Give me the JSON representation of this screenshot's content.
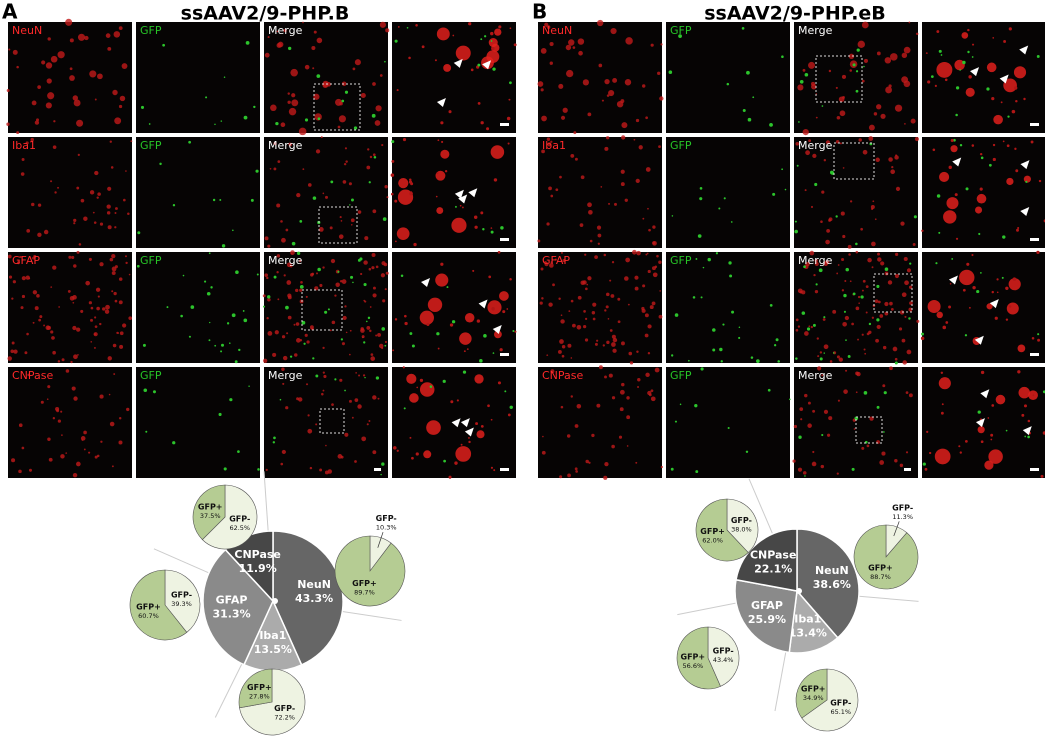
{
  "panels": [
    {
      "letter": "A",
      "title": "ssAAV2/9-PHP.B",
      "rows": [
        [
          "NeuN",
          "GFP",
          "Merge"
        ],
        [
          "Iba1",
          "GFP",
          "Merge"
        ],
        [
          "GFAP",
          "GFP",
          "Merge"
        ],
        [
          "CNPase",
          "GFP",
          "Merge"
        ]
      ],
      "main_pie": {
        "type": "pie",
        "categories": [
          "NeuN",
          "Iba1",
          "GFAP",
          "CNPase"
        ],
        "values": [
          43.3,
          13.5,
          31.3,
          11.9
        ],
        "value_labels": [
          "43.3%",
          "13.5%",
          "31.3%",
          "11.9%"
        ],
        "colors": [
          "#666666",
          "#ababab",
          "#8a8a8a",
          "#474747"
        ]
      },
      "sub_pies": [
        {
          "type": "pie",
          "categories": [
            "GFP-",
            "GFP+"
          ],
          "values": [
            10.3,
            89.7
          ],
          "value_labels": [
            "10.3%",
            "89.7%"
          ],
          "colors": [
            "#eef3e2",
            "#b5cc93"
          ]
        },
        {
          "type": "pie",
          "categories": [
            "GFP-",
            "GFP+"
          ],
          "values": [
            72.2,
            27.8
          ],
          "value_labels": [
            "72.2%",
            "27.8%"
          ],
          "colors": [
            "#eef3e2",
            "#b5cc93"
          ]
        },
        {
          "type": "pie",
          "categories": [
            "GFP-",
            "GFP+"
          ],
          "values": [
            39.3,
            60.7
          ],
          "value_labels": [
            "39.3%",
            "60.7%"
          ],
          "colors": [
            "#eef3e2",
            "#b5cc93"
          ]
        },
        {
          "type": "pie",
          "categories": [
            "GFP-",
            "GFP+"
          ],
          "values": [
            62.5,
            37.5
          ],
          "value_labels": [
            "62.5%",
            "37.5%"
          ],
          "colors": [
            "#eef3e2",
            "#b5cc93"
          ]
        }
      ]
    },
    {
      "letter": "B",
      "title": "ssAAV2/9-PHP.eB",
      "rows": [
        [
          "NeuN",
          "GFP",
          "Merge"
        ],
        [
          "Iba1",
          "GFP",
          "Merge"
        ],
        [
          "GFAP",
          "GFP",
          "Merge"
        ],
        [
          "CNPase",
          "GFP",
          "Merge"
        ]
      ],
      "main_pie": {
        "type": "pie",
        "categories": [
          "NeuN",
          "Iba1",
          "GFAP",
          "CNPase"
        ],
        "values": [
          38.6,
          13.4,
          25.9,
          22.1
        ],
        "value_labels": [
          "38.6%",
          "13.4%",
          "25.9%",
          "22.1%"
        ],
        "colors": [
          "#666666",
          "#ababab",
          "#8a8a8a",
          "#474747"
        ]
      },
      "sub_pies": [
        {
          "type": "pie",
          "categories": [
            "GFP-",
            "GFP+"
          ],
          "values": [
            11.3,
            88.7
          ],
          "value_labels": [
            "11.3%",
            "88.7%"
          ],
          "colors": [
            "#eef3e2",
            "#b5cc93"
          ]
        },
        {
          "type": "pie",
          "categories": [
            "GFP-",
            "GFP+"
          ],
          "values": [
            65.1,
            34.9
          ],
          "value_labels": [
            "65.1%",
            "34.9%"
          ],
          "colors": [
            "#eef3e2",
            "#b5cc93"
          ]
        },
        {
          "type": "pie",
          "categories": [
            "GFP-",
            "GFP+"
          ],
          "values": [
            43.4,
            56.6
          ],
          "value_labels": [
            "43.4%",
            "56.6%"
          ],
          "colors": [
            "#eef3e2",
            "#b5cc93"
          ]
        },
        {
          "type": "pie",
          "categories": [
            "GFP-",
            "GFP+"
          ],
          "values": [
            38.0,
            62.0
          ],
          "value_labels": [
            "38.0%",
            "62.0%"
          ],
          "colors": [
            "#eef3e2",
            "#b5cc93"
          ]
        }
      ]
    }
  ]
}
